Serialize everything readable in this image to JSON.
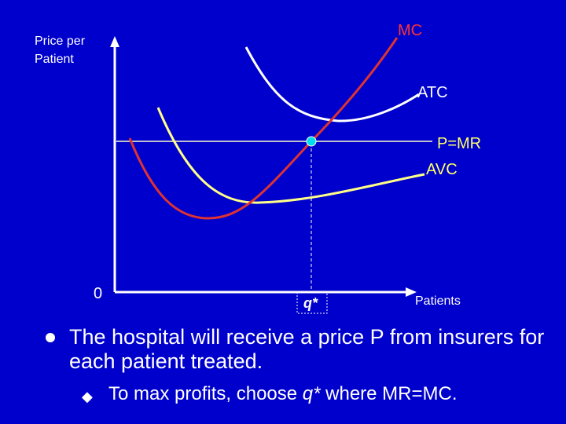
{
  "diagram": {
    "y_axis_label_line1": "Price per",
    "y_axis_label_line2": "Patient",
    "origin_label": "0",
    "x_axis_label": "Patients",
    "q_label": "q*",
    "curves": [
      {
        "name": "MC",
        "color": "#ff3333"
      },
      {
        "name": "ATC",
        "color": "#ffffff"
      },
      {
        "name": "P=MR",
        "color": "#ffff66"
      },
      {
        "name": "AVC",
        "color": "#ffff66"
      }
    ],
    "colors": {
      "background": "#0000cc",
      "mc": "#dd3333",
      "atc": "#ffffff",
      "avc": "#ffff88",
      "price_line": "#ffffcc",
      "equilibrium_point": "#00ddee"
    }
  },
  "bullets": {
    "main": "The hospital will receive a price P from insurers for each patient treated.",
    "sub_prefix": "To max profits, choose ",
    "sub_q": "q*",
    "sub_suffix": " where MR=MC."
  }
}
